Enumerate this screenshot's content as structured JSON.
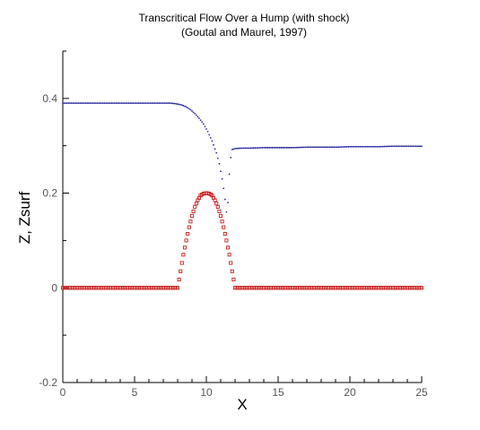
{
  "chart_data": {
    "type": "scatter",
    "title": "Transcritical Flow Over a Hump (with shock)",
    "subtitle": "(Goutal and Maurel, 1997)",
    "xlabel": "X",
    "ylabel": "Z, Zsurf",
    "xlim": [
      0,
      25
    ],
    "ylim": [
      -0.2,
      0.5
    ],
    "x_ticks": [
      0,
      5,
      10,
      15,
      20,
      25
    ],
    "y_ticks": [
      -0.2,
      0,
      0.2,
      0.4
    ],
    "grid": false,
    "series": [
      {
        "color": "#2b2ba0",
        "marker": "small-dot",
        "points": [
          [
            0,
            0.39
          ],
          [
            1,
            0.39
          ],
          [
            2,
            0.39
          ],
          [
            3,
            0.39
          ],
          [
            4,
            0.39
          ],
          [
            5,
            0.39
          ],
          [
            6,
            0.39
          ],
          [
            7,
            0.39
          ],
          [
            7.5,
            0.39
          ],
          [
            7.8,
            0.389
          ],
          [
            8.0,
            0.388
          ],
          [
            8.3,
            0.386
          ],
          [
            8.6,
            0.382
          ],
          [
            8.9,
            0.376
          ],
          [
            9.2,
            0.368
          ],
          [
            9.5,
            0.358
          ],
          [
            9.8,
            0.346
          ],
          [
            10.1,
            0.33
          ],
          [
            10.4,
            0.31
          ],
          [
            10.7,
            0.285
          ],
          [
            10.9,
            0.262
          ],
          [
            11.1,
            0.23
          ],
          [
            11.25,
            0.2
          ],
          [
            11.4,
            0.16
          ],
          [
            11.5,
            0.18
          ],
          [
            11.6,
            0.24
          ],
          [
            11.7,
            0.275
          ],
          [
            11.8,
            0.292
          ],
          [
            12.0,
            0.294
          ],
          [
            12.5,
            0.295
          ],
          [
            13,
            0.295
          ],
          [
            14,
            0.296
          ],
          [
            15,
            0.296
          ],
          [
            16,
            0.296
          ],
          [
            17,
            0.297
          ],
          [
            18,
            0.297
          ],
          [
            19,
            0.297
          ],
          [
            20,
            0.298
          ],
          [
            21,
            0.298
          ],
          [
            22,
            0.298
          ],
          [
            23,
            0.299
          ],
          [
            24,
            0.299
          ],
          [
            25,
            0.299
          ]
        ]
      },
      {
        "color": "#c81e1e",
        "marker": "small-square",
        "points": [
          [
            0,
            0
          ],
          [
            1,
            0
          ],
          [
            2,
            0
          ],
          [
            3,
            0
          ],
          [
            4,
            0
          ],
          [
            5,
            0
          ],
          [
            6,
            0
          ],
          [
            7,
            0
          ],
          [
            7.8,
            0
          ],
          [
            8.0,
            0
          ],
          [
            8.2,
            0.035
          ],
          [
            8.4,
            0.07
          ],
          [
            8.6,
            0.1
          ],
          [
            8.8,
            0.128
          ],
          [
            9.0,
            0.152
          ],
          [
            9.2,
            0.171
          ],
          [
            9.4,
            0.185
          ],
          [
            9.6,
            0.195
          ],
          [
            9.8,
            0.199
          ],
          [
            10.0,
            0.2
          ],
          [
            10.2,
            0.199
          ],
          [
            10.4,
            0.195
          ],
          [
            10.6,
            0.185
          ],
          [
            10.8,
            0.171
          ],
          [
            11.0,
            0.152
          ],
          [
            11.2,
            0.128
          ],
          [
            11.4,
            0.1
          ],
          [
            11.6,
            0.07
          ],
          [
            11.8,
            0.035
          ],
          [
            12.0,
            0
          ],
          [
            13,
            0
          ],
          [
            14,
            0
          ],
          [
            15,
            0
          ],
          [
            16,
            0
          ],
          [
            17,
            0
          ],
          [
            18,
            0
          ],
          [
            19,
            0
          ],
          [
            20,
            0
          ],
          [
            21,
            0
          ],
          [
            22,
            0
          ],
          [
            23,
            0
          ],
          [
            24,
            0
          ],
          [
            25,
            0
          ]
        ]
      }
    ]
  }
}
